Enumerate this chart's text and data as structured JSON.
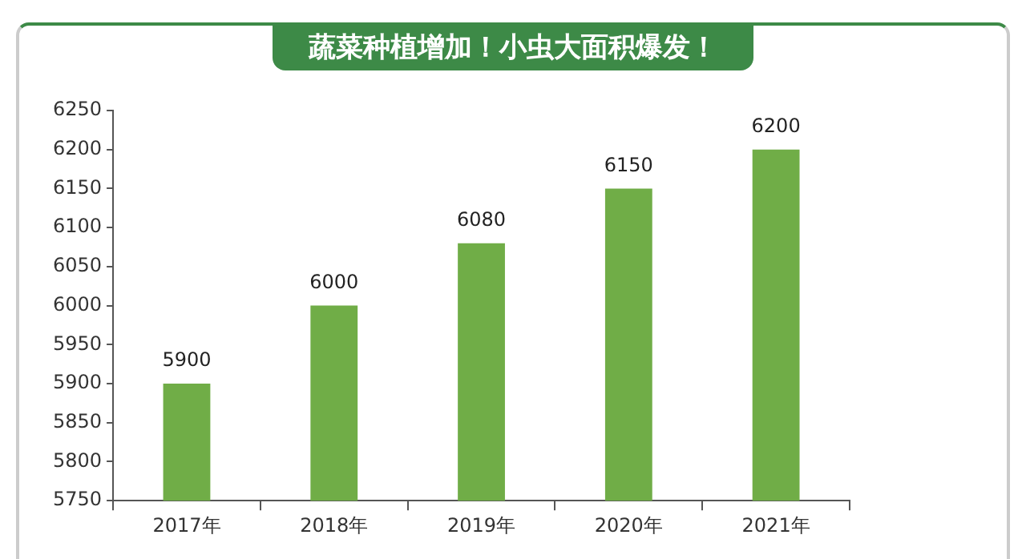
{
  "chart_data": {
    "type": "bar",
    "title": "蔬菜种植增加！小虫大面积爆发！",
    "categories": [
      "2017年",
      "2018年",
      "2019年",
      "2020年",
      "2021年"
    ],
    "values": [
      5900,
      6000,
      6080,
      6150,
      6200
    ],
    "color": "#70ad47",
    "ylim": [
      5750,
      6250
    ],
    "yticks": [
      5750,
      5800,
      5850,
      5900,
      5950,
      6000,
      6050,
      6100,
      6150,
      6200,
      6250
    ],
    "grid": false,
    "legend": false,
    "data_labels": true
  }
}
